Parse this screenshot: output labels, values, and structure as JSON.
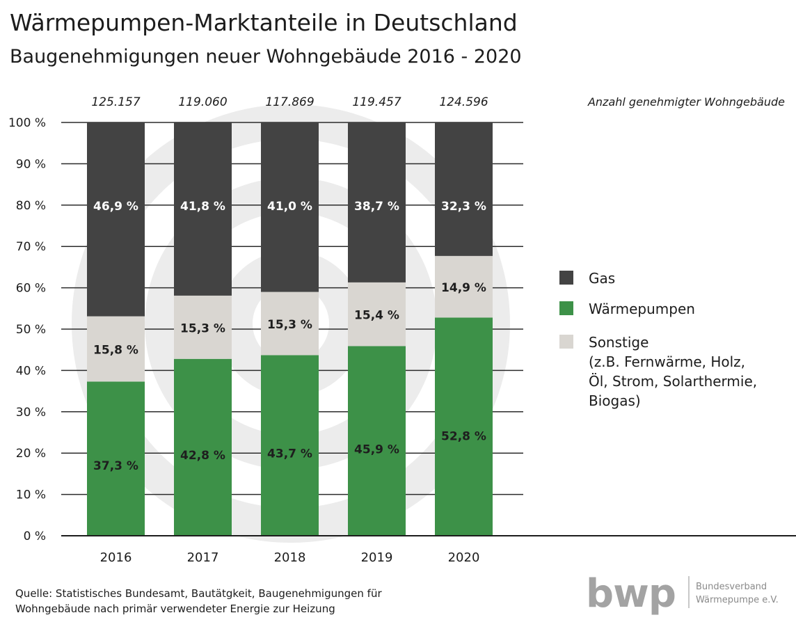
{
  "chart_data": {
    "type": "bar",
    "stacked": true,
    "title": "Wärmepumpen-Marktanteile in Deutschland",
    "subtitle": "Baugenehmigungen neuer Wohngebäude 2016 - 2020",
    "categories": [
      "2016",
      "2017",
      "2018",
      "2019",
      "2020"
    ],
    "totals": {
      "label": "Anzahl genehmigter Wohngebäude",
      "values": [
        "125.157",
        "119.060",
        "117.869",
        "119.457",
        "124.596"
      ]
    },
    "series": [
      {
        "name": "Wärmepumpen",
        "values": [
          37.3,
          42.8,
          43.7,
          45.9,
          52.8
        ],
        "labels": [
          "37,3 %",
          "42,8 %",
          "43,7 %",
          "45,9 %",
          "52,8 %"
        ],
        "color": "#3d9148",
        "label_color": "#1e1e1e"
      },
      {
        "name": "Sonstige",
        "values": [
          15.8,
          15.3,
          15.3,
          15.4,
          14.9
        ],
        "labels": [
          "15,8 %",
          "15,3 %",
          "15,3 %",
          "15,4 %",
          "14,9 %"
        ],
        "color": "#d9d6d1",
        "label_color": "#1e1e1e"
      },
      {
        "name": "Gas",
        "values": [
          46.9,
          41.8,
          41.0,
          38.7,
          32.3
        ],
        "labels": [
          "46,9 %",
          "41,8 %",
          "41,0 %",
          "38,7 %",
          "32,3 %"
        ],
        "color": "#434343",
        "label_color": "#ffffff"
      }
    ],
    "legend": [
      {
        "name": "Gas",
        "color": "#434343",
        "lines": [
          "Gas"
        ]
      },
      {
        "name": "Wärmepumpen",
        "color": "#3d9148",
        "lines": [
          "Wärmepumpen"
        ]
      },
      {
        "name": "Sonstige",
        "color": "#d9d6d1",
        "lines": [
          "Sonstige",
          "(z.B. Fernwärme, Holz,",
          "Öl, Strom, Solarthermie,",
          "Biogas)"
        ]
      }
    ],
    "legend_position": "right",
    "ylim": [
      0,
      100
    ],
    "yticks": [
      0,
      10,
      20,
      30,
      40,
      50,
      60,
      70,
      80,
      90,
      100
    ],
    "ytick_labels": [
      "0 %",
      "10 %",
      "20 %",
      "30 %",
      "40 %",
      "50 %",
      "60 %",
      "70 %",
      "80 %",
      "90 %",
      "100 %"
    ],
    "grid": true
  },
  "source": {
    "line1": "Quelle: Statistisches Bundesamt, Bautätgkeit, Baugenehmigungen für",
    "line2": "Wohngebäude nach primär verwendeter Energie zur Heizung"
  },
  "logo": {
    "mark": "bwp",
    "line1": "Bundesverband",
    "line2": "Wärmepumpe e.V."
  }
}
